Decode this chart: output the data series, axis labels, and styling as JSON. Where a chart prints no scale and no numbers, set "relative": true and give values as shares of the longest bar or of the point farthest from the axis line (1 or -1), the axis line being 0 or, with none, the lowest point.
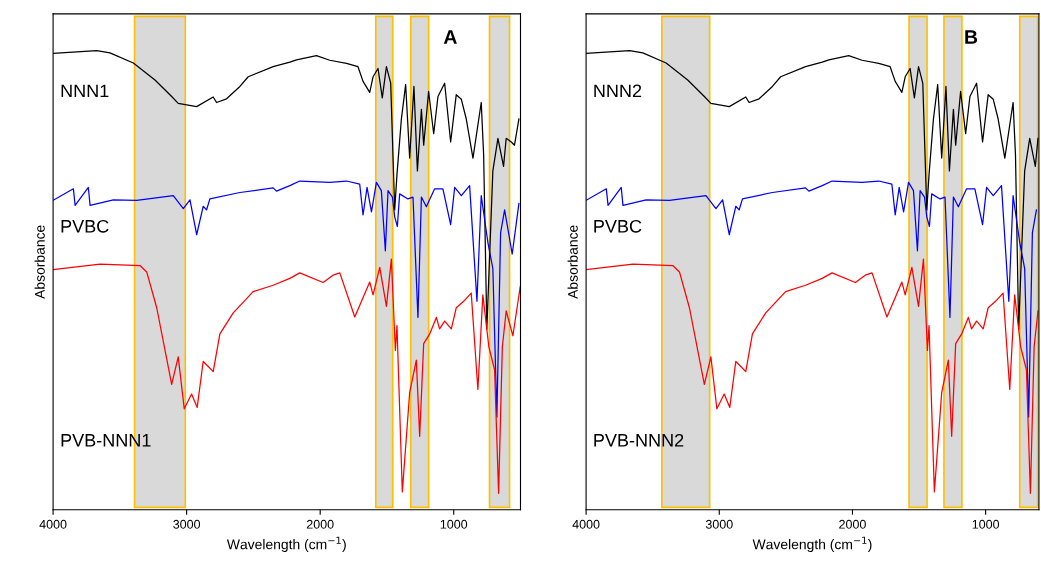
{
  "chart_data": [
    {
      "type": "line",
      "title": "A",
      "xlabel": "Wavelength (cm$^{−1}$)",
      "ylabel": "Absorbance",
      "relative": true,
      "xlim": [
        4000,
        500
      ],
      "xticks": [
        4000,
        3000,
        2000,
        1000
      ],
      "grid": false,
      "legend": false,
      "bands": [
        {
          "axis": "x",
          "from": 3390,
          "to": 3010,
          "color": "#d9d9d9"
        },
        {
          "axis": "x",
          "from": 1584,
          "to": 1457,
          "color": "#d9d9d9"
        },
        {
          "axis": "x",
          "from": 1322,
          "to": 1188,
          "color": "#d9d9d9"
        },
        {
          "axis": "x",
          "from": 732,
          "to": 582,
          "color": "#d9d9d9"
        }
      ],
      "series": [
        {
          "name": "NNN1",
          "color": "#000000",
          "x": [
            4000,
            3673,
            3574,
            3399,
            3237,
            3112,
            3063,
            2925,
            2801,
            2776,
            2701,
            2601,
            2539,
            2352,
            2227,
            2177,
            2028,
            1928,
            1803,
            1717,
            1679,
            1629,
            1604,
            1567,
            1535,
            1504,
            1472,
            1442,
            1425,
            1392,
            1360,
            1330,
            1298,
            1272,
            1242,
            1225,
            1188,
            1150,
            1118,
            1068,
            1023,
            981,
            943,
            906,
            856,
            794,
            776,
            752,
            707,
            669,
            627,
            607,
            569,
            545,
            512
          ],
          "values": [
            0.994,
            1.0,
            0.995,
            0.973,
            0.936,
            0.9,
            0.885,
            0.878,
            0.899,
            0.887,
            0.895,
            0.922,
            0.943,
            0.965,
            0.975,
            0.98,
            0.989,
            0.979,
            0.972,
            0.965,
            0.933,
            0.909,
            0.943,
            0.961,
            0.897,
            0.965,
            0.929,
            0.653,
            0.73,
            0.851,
            0.926,
            0.766,
            0.922,
            0.738,
            0.872,
            0.794,
            0.911,
            0.819,
            0.9,
            0.929,
            0.801,
            0.904,
            0.894,
            0.851,
            0.766,
            0.887,
            0.773,
            0.394,
            0.738,
            0.809,
            0.748,
            0.809,
            0.801,
            0.794,
            0.851
          ]
        },
        {
          "name": "PVBC",
          "color": "#0000ff",
          "x": [
            4000,
            3848,
            3835,
            3736,
            3723,
            3549,
            3374,
            3100,
            3025,
            2975,
            2925,
            2876,
            2851,
            2826,
            2601,
            2352,
            2327,
            2227,
            2153,
            1928,
            1803,
            1704,
            1679,
            1649,
            1616,
            1579,
            1542,
            1512,
            1492,
            1459,
            1442,
            1422,
            1405,
            1343,
            1305,
            1268,
            1242,
            1205,
            1143,
            1081,
            1023,
            993,
            943,
            881,
            826,
            794,
            744,
            707,
            677,
            649,
            619,
            562,
            512
          ],
          "values": [
            0.674,
            0.699,
            0.663,
            0.702,
            0.663,
            0.675,
            0.674,
            0.684,
            0.656,
            0.675,
            0.599,
            0.661,
            0.653,
            0.677,
            0.691,
            0.701,
            0.694,
            0.706,
            0.716,
            0.713,
            0.716,
            0.709,
            0.642,
            0.702,
            0.649,
            0.713,
            0.695,
            0.564,
            0.695,
            0.681,
            0.638,
            0.617,
            0.688,
            0.677,
            0.681,
            0.419,
            0.681,
            0.66,
            0.699,
            0.699,
            0.621,
            0.702,
            0.684,
            0.706,
            0.454,
            0.684,
            0.582,
            0.525,
            0.202,
            0.603,
            0.653,
            0.557,
            0.667
          ]
        },
        {
          "name": "PVB-NNN1",
          "color": "#ff0000",
          "x": [
            4000,
            3648,
            3349,
            3299,
            3224,
            3112,
            3063,
            3018,
            2963,
            2921,
            2876,
            2838,
            2801,
            2751,
            2651,
            2502,
            2352,
            2227,
            2153,
            1978,
            1904,
            1853,
            1741,
            1629,
            1604,
            1554,
            1504,
            1467,
            1437,
            1425,
            1385,
            1330,
            1280,
            1255,
            1225,
            1180,
            1130,
            1106,
            1068,
            1018,
            981,
            926,
            869,
            819,
            782,
            737,
            694,
            664,
            636,
            607,
            557,
            502
          ],
          "values": [
            0.523,
            0.535,
            0.532,
            0.518,
            0.44,
            0.273,
            0.333,
            0.22,
            0.252,
            0.223,
            0.323,
            0.312,
            0.301,
            0.383,
            0.429,
            0.475,
            0.489,
            0.504,
            0.516,
            0.495,
            0.511,
            0.516,
            0.42,
            0.496,
            0.468,
            0.528,
            0.443,
            0.546,
            0.347,
            0.401,
            0.039,
            0.255,
            0.326,
            0.16,
            0.362,
            0.383,
            0.419,
            0.394,
            0.411,
            0.394,
            0.44,
            0.454,
            0.472,
            0.262,
            0.468,
            0.355,
            0.305,
            0.036,
            0.355,
            0.433,
            0.379,
            0.486
          ]
        }
      ]
    },
    {
      "type": "line",
      "title": "B",
      "xlabel": "Wavelength (cm$^{−1}$)",
      "ylabel": "Absorbance",
      "relative": true,
      "xlim": [
        4000,
        600
      ],
      "xticks": [
        4000,
        3000,
        2000,
        1000
      ],
      "grid": false,
      "legend": false,
      "bands": [
        {
          "axis": "x",
          "from": 3431,
          "to": 3072,
          "color": "#d9d9d9"
        },
        {
          "axis": "x",
          "from": 1575,
          "to": 1440,
          "color": "#d9d9d9"
        },
        {
          "axis": "x",
          "from": 1313,
          "to": 1178,
          "color": "#d9d9d9"
        },
        {
          "axis": "x",
          "from": 744,
          "to": 609,
          "color": "#d9d9d9"
        }
      ],
      "series": [
        {
          "name": "NNN2",
          "color": "#000000",
          "x": [
            4000,
            3673,
            3574,
            3399,
            3237,
            3112,
            3063,
            2925,
            2801,
            2776,
            2701,
            2601,
            2539,
            2352,
            2227,
            2177,
            2028,
            1928,
            1803,
            1717,
            1679,
            1629,
            1604,
            1567,
            1535,
            1504,
            1472,
            1442,
            1425,
            1392,
            1360,
            1330,
            1298,
            1272,
            1242,
            1225,
            1188,
            1150,
            1118,
            1068,
            1023,
            981,
            943,
            906,
            856,
            794,
            776,
            752,
            707,
            669,
            627,
            607
          ],
          "values": [
            0.994,
            1.0,
            0.995,
            0.973,
            0.936,
            0.9,
            0.885,
            0.878,
            0.899,
            0.887,
            0.895,
            0.922,
            0.943,
            0.965,
            0.975,
            0.98,
            0.989,
            0.979,
            0.972,
            0.965,
            0.933,
            0.909,
            0.943,
            0.961,
            0.897,
            0.965,
            0.929,
            0.653,
            0.73,
            0.851,
            0.926,
            0.766,
            0.922,
            0.738,
            0.872,
            0.794,
            0.911,
            0.819,
            0.9,
            0.929,
            0.801,
            0.904,
            0.894,
            0.851,
            0.766,
            0.887,
            0.773,
            0.394,
            0.738,
            0.809,
            0.748,
            0.809
          ]
        },
        {
          "name": "PVBC",
          "color": "#0000ff",
          "x": [
            4000,
            3848,
            3835,
            3736,
            3723,
            3549,
            3374,
            3100,
            3025,
            2975,
            2925,
            2876,
            2851,
            2826,
            2601,
            2352,
            2327,
            2227,
            2153,
            1928,
            1803,
            1704,
            1679,
            1649,
            1616,
            1579,
            1542,
            1512,
            1492,
            1459,
            1442,
            1422,
            1405,
            1343,
            1305,
            1268,
            1242,
            1205,
            1143,
            1081,
            1023,
            993,
            943,
            881,
            826,
            794,
            744,
            707,
            677,
            649,
            619
          ],
          "values": [
            0.674,
            0.699,
            0.663,
            0.702,
            0.663,
            0.675,
            0.674,
            0.684,
            0.656,
            0.675,
            0.599,
            0.661,
            0.653,
            0.677,
            0.691,
            0.701,
            0.694,
            0.706,
            0.716,
            0.713,
            0.716,
            0.709,
            0.642,
            0.702,
            0.649,
            0.713,
            0.695,
            0.564,
            0.695,
            0.681,
            0.638,
            0.617,
            0.688,
            0.677,
            0.681,
            0.419,
            0.681,
            0.66,
            0.699,
            0.699,
            0.621,
            0.702,
            0.684,
            0.706,
            0.454,
            0.684,
            0.582,
            0.525,
            0.202,
            0.603,
            0.653
          ]
        },
        {
          "name": "PVB-NNN2",
          "color": "#ff0000",
          "x": [
            4000,
            3648,
            3349,
            3299,
            3224,
            3112,
            3063,
            3018,
            2963,
            2921,
            2876,
            2838,
            2801,
            2751,
            2651,
            2502,
            2352,
            2227,
            2153,
            1978,
            1904,
            1853,
            1741,
            1629,
            1604,
            1554,
            1504,
            1467,
            1437,
            1425,
            1385,
            1330,
            1280,
            1255,
            1225,
            1180,
            1130,
            1106,
            1068,
            1018,
            981,
            926,
            869,
            819,
            782,
            737,
            694,
            664,
            636,
            607
          ],
          "values": [
            0.523,
            0.535,
            0.532,
            0.518,
            0.44,
            0.273,
            0.333,
            0.22,
            0.252,
            0.223,
            0.323,
            0.312,
            0.301,
            0.383,
            0.429,
            0.475,
            0.489,
            0.504,
            0.516,
            0.495,
            0.511,
            0.516,
            0.42,
            0.496,
            0.468,
            0.528,
            0.443,
            0.546,
            0.347,
            0.401,
            0.039,
            0.255,
            0.326,
            0.16,
            0.362,
            0.383,
            0.419,
            0.394,
            0.411,
            0.394,
            0.44,
            0.454,
            0.472,
            0.262,
            0.468,
            0.355,
            0.305,
            0.036,
            0.355,
            0.433
          ]
        }
      ]
    }
  ]
}
